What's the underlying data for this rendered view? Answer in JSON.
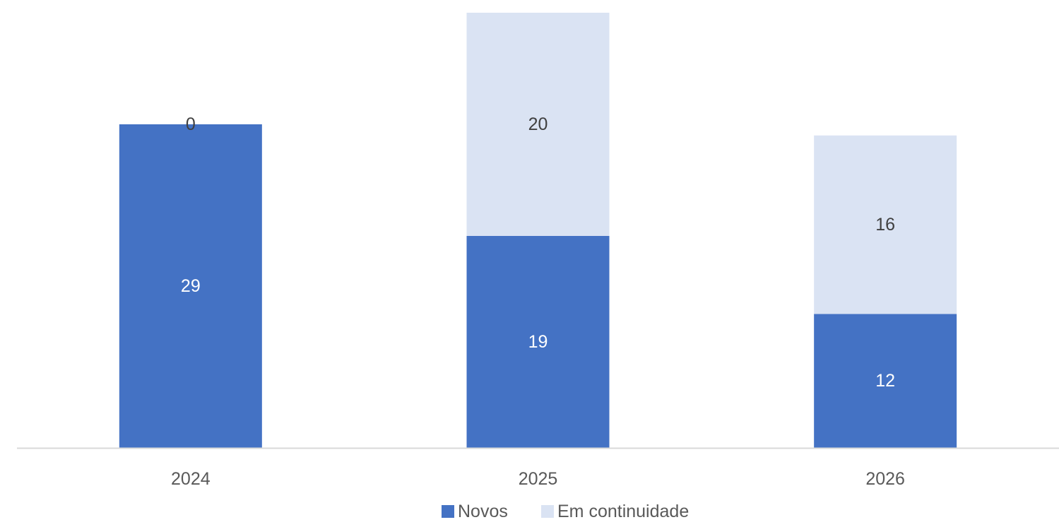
{
  "chart_data": {
    "type": "bar",
    "stacked": true,
    "title": "",
    "xlabel": "",
    "ylabel": "",
    "categories": [
      "2024",
      "2025",
      "2026"
    ],
    "ylim": [
      0,
      39
    ],
    "grid": false,
    "legend_position": "bottom",
    "series": [
      {
        "name": "Novos",
        "values": [
          29,
          19,
          12
        ],
        "color": "#4472C4",
        "label_color": "#FFFFFF"
      },
      {
        "name": "Em continuidade",
        "values": [
          0,
          20,
          16
        ],
        "color": "#DAE3F3",
        "label_color": "#404040"
      }
    ]
  },
  "colors": {
    "axis_line": "#D9D9D9",
    "tick_text": "#595959",
    "legend_text": "#595959"
  }
}
